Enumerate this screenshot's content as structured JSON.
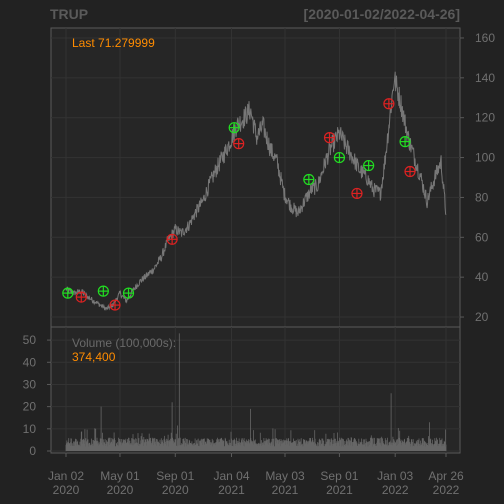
{
  "chart_data": {
    "type": "line",
    "title": "TRUP",
    "date_range_label": "[2020-01-02/2022-04-26]",
    "last_label": "Last 71.279999",
    "colors": {
      "background": "#222222",
      "panel": "#262626",
      "border": "#5a5a5a",
      "grid": "#333333",
      "price_line": "#777777",
      "volume_bar": "#666666",
      "text": "#707070",
      "annotation": "#ff8c00",
      "buy_marker": "#22dd22",
      "sell_marker": "#dd2222"
    },
    "price_panel": {
      "ylim": [
        15,
        165
      ],
      "yticks": [
        "20",
        "40",
        "60",
        "80",
        "100",
        "120",
        "140",
        "160"
      ],
      "y_axis_side": "right",
      "series": [
        {
          "x": [
            "2020-01-02",
            "2020-01-20",
            "2020-02-05",
            "2020-02-20",
            "2020-03-05",
            "2020-03-18",
            "2020-04-01",
            "2020-04-15",
            "2020-05-01",
            "2020-05-15",
            "2020-06-01",
            "2020-06-15",
            "2020-07-01",
            "2020-07-15",
            "2020-08-01",
            "2020-08-15",
            "2020-09-01",
            "2020-09-15",
            "2020-10-01",
            "2020-10-15",
            "2020-11-01",
            "2020-11-15",
            "2020-12-01",
            "2020-12-15",
            "2021-01-01",
            "2021-01-15",
            "2021-02-01",
            "2021-02-15",
            "2021-03-01",
            "2021-03-15",
            "2021-04-01",
            "2021-04-15",
            "2021-05-01",
            "2021-05-15",
            "2021-06-01",
            "2021-06-15",
            "2021-07-01",
            "2021-07-15",
            "2021-08-01",
            "2021-08-15",
            "2021-09-01",
            "2021-09-15",
            "2021-10-01",
            "2021-10-15",
            "2021-11-01",
            "2021-11-15",
            "2021-12-01",
            "2021-12-10",
            "2021-12-20",
            "2022-01-01",
            "2022-01-15",
            "2022-02-01",
            "2022-02-15",
            "2022-03-01",
            "2022-03-15",
            "2022-04-01",
            "2022-04-15",
            "2022-04-26"
          ],
          "values": [
            34,
            32,
            33,
            30,
            28,
            26,
            24,
            26,
            32,
            28,
            34,
            38,
            41,
            44,
            50,
            58,
            64,
            62,
            66,
            72,
            78,
            86,
            94,
            100,
            108,
            116,
            120,
            124,
            110,
            116,
            104,
            98,
            82,
            76,
            72,
            78,
            84,
            86,
            98,
            106,
            112,
            106,
            100,
            94,
            90,
            84,
            82,
            96,
            116,
            140,
            128,
            110,
            100,
            90,
            78,
            90,
            98,
            71.28
          ]
        }
      ],
      "markers": [
        {
          "type": "buy",
          "x": "2020-01-06",
          "y": 32
        },
        {
          "type": "sell",
          "x": "2020-02-05",
          "y": 30
        },
        {
          "type": "buy",
          "x": "2020-03-25",
          "y": 33
        },
        {
          "type": "sell",
          "x": "2020-04-20",
          "y": 26
        },
        {
          "type": "buy",
          "x": "2020-05-20",
          "y": 32
        },
        {
          "type": "sell",
          "x": "2020-08-25",
          "y": 59
        },
        {
          "type": "buy",
          "x": "2021-01-10",
          "y": 115
        },
        {
          "type": "sell",
          "x": "2021-01-20",
          "y": 107
        },
        {
          "type": "buy",
          "x": "2021-06-25",
          "y": 89
        },
        {
          "type": "sell",
          "x": "2021-08-10",
          "y": 110
        },
        {
          "type": "buy",
          "x": "2021-09-01",
          "y": 100
        },
        {
          "type": "sell",
          "x": "2021-10-10",
          "y": 82
        },
        {
          "type": "buy",
          "x": "2021-11-05",
          "y": 96
        },
        {
          "type": "sell",
          "x": "2021-12-20",
          "y": 127
        },
        {
          "type": "buy",
          "x": "2022-01-25",
          "y": 108
        },
        {
          "type": "sell",
          "x": "2022-02-05",
          "y": 93
        }
      ]
    },
    "volume_panel": {
      "label": "Volume (100,000s):",
      "last_value": "374,400",
      "ylim": [
        0,
        55
      ],
      "yticks": [
        "0",
        "10",
        "20",
        "30",
        "40",
        "50"
      ],
      "y_axis_side": "left",
      "spikes": [
        {
          "x": "2020-03-20",
          "value": 20
        },
        {
          "x": "2020-08-25",
          "value": 22
        },
        {
          "x": "2020-09-10",
          "value": 53
        },
        {
          "x": "2021-02-15",
          "value": 19
        },
        {
          "x": "2021-12-25",
          "value": 26
        },
        {
          "x": "2022-03-20",
          "value": 13
        }
      ],
      "baseline_range": [
        2,
        6
      ]
    },
    "x_axis": {
      "start": "2020-01-02",
      "end": "2022-04-26",
      "ticks": [
        {
          "date": "2020-01-02",
          "line1": "Jan 02",
          "line2": "2020"
        },
        {
          "date": "2020-05-01",
          "line1": "May 01",
          "line2": "2020"
        },
        {
          "date": "2020-09-01",
          "line1": "Sep 01",
          "line2": "2020"
        },
        {
          "date": "2021-01-04",
          "line1": "Jan 04",
          "line2": "2021"
        },
        {
          "date": "2021-05-03",
          "line1": "May 03",
          "line2": "2021"
        },
        {
          "date": "2021-09-01",
          "line1": "Sep 01",
          "line2": "2021"
        },
        {
          "date": "2022-01-03",
          "line1": "Jan 03",
          "line2": "2022"
        },
        {
          "date": "2022-04-26",
          "line1": "Apr 26",
          "line2": "2022"
        }
      ]
    }
  }
}
